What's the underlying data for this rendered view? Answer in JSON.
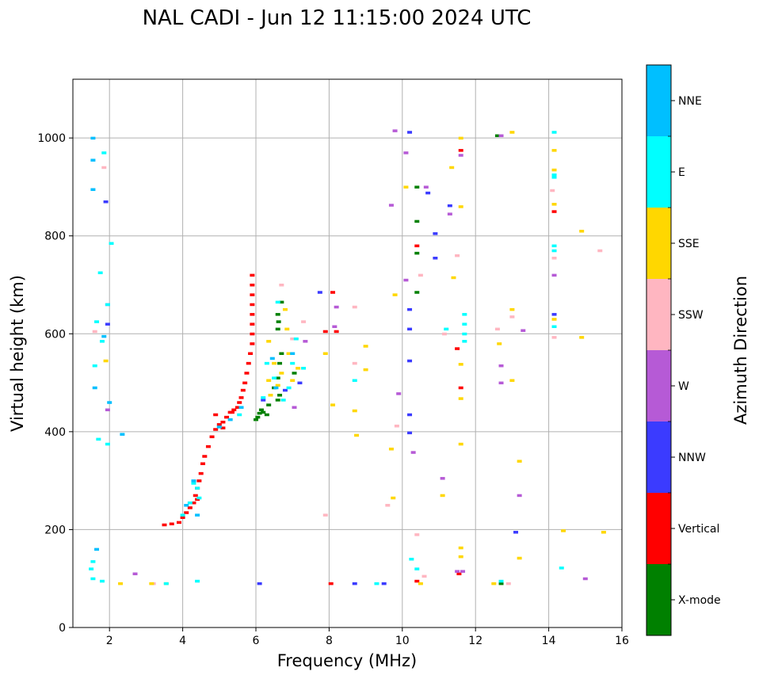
{
  "chart_data": {
    "type": "scatter",
    "title": "NAL CADI - Jun 12 11:15:00 2024 UTC",
    "xlabel": "Frequency (MHz)",
    "ylabel": "Virtual height (km)",
    "xlim": [
      1,
      16
    ],
    "ylim": [
      0,
      1120
    ],
    "xticks": [
      "2",
      "4",
      "6",
      "8",
      "10",
      "12",
      "14",
      "16"
    ],
    "xtick_values": [
      2,
      4,
      6,
      8,
      10,
      12,
      14,
      16
    ],
    "yticks": [
      "0",
      "200",
      "400",
      "600",
      "800",
      "1000"
    ],
    "ytick_values": [
      0,
      200,
      400,
      600,
      800,
      1000
    ],
    "grid": true,
    "colorbar": {
      "label": "Azimuth Direction",
      "categories": [
        "X-mode",
        "Vertical",
        "NNW",
        "W",
        "SSW",
        "SSE",
        "E",
        "NNE"
      ],
      "colors": [
        "#008000",
        "#ff0000",
        "#3b3bff",
        "#b65ad6",
        "#ffb6c1",
        "#ffd700",
        "#00ffff",
        "#00bfff"
      ]
    },
    "series": [
      {
        "name": "X-mode",
        "points": [
          [
            6.0,
            425
          ],
          [
            6.05,
            430
          ],
          [
            6.1,
            438
          ],
          [
            6.15,
            445
          ],
          [
            6.2,
            440
          ],
          [
            6.3,
            435
          ],
          [
            6.35,
            455
          ],
          [
            6.6,
            465
          ],
          [
            6.65,
            475
          ],
          [
            6.5,
            490
          ],
          [
            6.6,
            510
          ],
          [
            6.65,
            540
          ],
          [
            6.7,
            560
          ],
          [
            6.6,
            610
          ],
          [
            6.62,
            625
          ],
          [
            6.6,
            640
          ],
          [
            6.7,
            665
          ],
          [
            7.05,
            520
          ],
          [
            10.4,
            900
          ],
          [
            10.4,
            830
          ],
          [
            10.4,
            765
          ],
          [
            10.4,
            685
          ],
          [
            12.7,
            90
          ],
          [
            12.6,
            1005
          ]
        ]
      },
      {
        "name": "Vertical",
        "points": [
          [
            3.5,
            210
          ],
          [
            3.7,
            212
          ],
          [
            3.9,
            215
          ],
          [
            4.0,
            225
          ],
          [
            4.1,
            235
          ],
          [
            4.2,
            245
          ],
          [
            4.3,
            255
          ],
          [
            4.35,
            270
          ],
          [
            4.4,
            285
          ],
          [
            4.45,
            300
          ],
          [
            4.5,
            315
          ],
          [
            4.55,
            335
          ],
          [
            4.6,
            350
          ],
          [
            4.7,
            370
          ],
          [
            4.8,
            390
          ],
          [
            4.9,
            405
          ],
          [
            5.0,
            415
          ],
          [
            5.1,
            420
          ],
          [
            5.2,
            430
          ],
          [
            5.3,
            440
          ],
          [
            5.4,
            445
          ],
          [
            5.5,
            450
          ],
          [
            5.55,
            460
          ],
          [
            5.6,
            470
          ],
          [
            5.65,
            485
          ],
          [
            5.7,
            500
          ],
          [
            5.75,
            520
          ],
          [
            5.8,
            540
          ],
          [
            5.85,
            560
          ],
          [
            5.9,
            580
          ],
          [
            5.9,
            600
          ],
          [
            5.9,
            620
          ],
          [
            5.9,
            640
          ],
          [
            5.9,
            660
          ],
          [
            5.9,
            680
          ],
          [
            5.9,
            700
          ],
          [
            5.9,
            720
          ],
          [
            4.4,
            262
          ],
          [
            4.9,
            435
          ],
          [
            5.1,
            408
          ],
          [
            5.35,
            440
          ],
          [
            8.05,
            90
          ],
          [
            8.1,
            685
          ],
          [
            8.2,
            605
          ],
          [
            7.9,
            605
          ],
          [
            10.4,
            95
          ],
          [
            10.4,
            780
          ],
          [
            11.55,
            110
          ],
          [
            11.6,
            490
          ],
          [
            11.6,
            975
          ],
          [
            14.15,
            850
          ],
          [
            11.5,
            570
          ]
        ]
      },
      {
        "name": "NNW",
        "points": [
          [
            1.9,
            870
          ],
          [
            1.95,
            620
          ],
          [
            9.5,
            90
          ],
          [
            10.2,
            1012
          ],
          [
            10.2,
            650
          ],
          [
            10.2,
            610
          ],
          [
            10.2,
            545
          ],
          [
            10.2,
            435
          ],
          [
            10.2,
            398
          ],
          [
            10.7,
            888
          ],
          [
            10.9,
            805
          ],
          [
            10.9,
            755
          ],
          [
            11.3,
            862
          ],
          [
            13.1,
            195
          ],
          [
            14.15,
            640
          ],
          [
            6.1,
            90
          ],
          [
            6.2,
            465
          ],
          [
            6.8,
            485
          ],
          [
            7.2,
            500
          ],
          [
            7.75,
            685
          ],
          [
            8.7,
            90
          ]
        ]
      },
      {
        "name": "W",
        "points": [
          [
            1.95,
            660
          ],
          [
            1.95,
            445
          ],
          [
            2.7,
            110
          ],
          [
            8.2,
            655
          ],
          [
            8.15,
            615
          ],
          [
            9.8,
            1015
          ],
          [
            9.9,
            478
          ],
          [
            10.1,
            710
          ],
          [
            10.1,
            970
          ],
          [
            10.3,
            358
          ],
          [
            10.65,
            900
          ],
          [
            11.1,
            305
          ],
          [
            11.3,
            845
          ],
          [
            11.6,
            965
          ],
          [
            11.65,
            115
          ],
          [
            12.7,
            1005
          ],
          [
            12.7,
            535
          ],
          [
            12.7,
            500
          ],
          [
            13.2,
            270
          ],
          [
            13.3,
            607
          ],
          [
            14.15,
            720
          ],
          [
            15.0,
            100
          ],
          [
            9.7,
            863
          ],
          [
            11.5,
            115
          ],
          [
            7.35,
            585
          ],
          [
            7.05,
            450
          ]
        ]
      },
      {
        "name": "SSW",
        "points": [
          [
            1.6,
            605
          ],
          [
            1.85,
            940
          ],
          [
            3.2,
            90
          ],
          [
            7.3,
            625
          ],
          [
            7.9,
            230
          ],
          [
            8.7,
            655
          ],
          [
            8.7,
            540
          ],
          [
            9.6,
            250
          ],
          [
            9.85,
            412
          ],
          [
            10.4,
            190
          ],
          [
            10.5,
            720
          ],
          [
            10.6,
            105
          ],
          [
            11.15,
            600
          ],
          [
            11.5,
            760
          ],
          [
            12.6,
            610
          ],
          [
            12.9,
            90
          ],
          [
            13.0,
            635
          ],
          [
            14.1,
            893
          ],
          [
            14.15,
            755
          ],
          [
            14.15,
            593
          ],
          [
            15.4,
            770
          ],
          [
            6.7,
            700
          ],
          [
            7.0,
            590
          ]
        ]
      },
      {
        "name": "SSE",
        "points": [
          [
            1.9,
            545
          ],
          [
            2.3,
            90
          ],
          [
            3.15,
            90
          ],
          [
            3.55,
            90
          ],
          [
            7.9,
            560
          ],
          [
            8.1,
            455
          ],
          [
            8.7,
            443
          ],
          [
            8.75,
            393
          ],
          [
            9.0,
            575
          ],
          [
            9.0,
            527
          ],
          [
            9.7,
            365
          ],
          [
            9.75,
            265
          ],
          [
            9.8,
            680
          ],
          [
            10.1,
            900
          ],
          [
            10.5,
            90
          ],
          [
            11.1,
            270
          ],
          [
            11.35,
            940
          ],
          [
            11.4,
            715
          ],
          [
            11.6,
            1000
          ],
          [
            11.6,
            860
          ],
          [
            11.6,
            538
          ],
          [
            11.6,
            468
          ],
          [
            11.6,
            375
          ],
          [
            11.6,
            163
          ],
          [
            11.6,
            145
          ],
          [
            12.65,
            580
          ],
          [
            13.0,
            1012
          ],
          [
            13.0,
            650
          ],
          [
            13.0,
            505
          ],
          [
            13.2,
            340
          ],
          [
            13.2,
            142
          ],
          [
            14.15,
            975
          ],
          [
            14.15,
            935
          ],
          [
            14.15,
            865
          ],
          [
            14.15,
            630
          ],
          [
            14.4,
            198
          ],
          [
            14.9,
            593
          ],
          [
            14.9,
            810
          ],
          [
            15.5,
            195
          ],
          [
            6.35,
            585
          ],
          [
            6.5,
            540
          ],
          [
            6.7,
            520
          ],
          [
            6.9,
            560
          ],
          [
            7.0,
            505
          ],
          [
            6.4,
            475
          ],
          [
            6.35,
            505
          ],
          [
            6.6,
            495
          ],
          [
            7.15,
            530
          ],
          [
            6.8,
            650
          ],
          [
            6.85,
            610
          ],
          [
            12.5,
            90
          ]
        ]
      },
      {
        "name": "E",
        "points": [
          [
            1.5,
            120
          ],
          [
            1.55,
            100
          ],
          [
            1.55,
            135
          ],
          [
            1.6,
            535
          ],
          [
            1.65,
            625
          ],
          [
            1.7,
            385
          ],
          [
            1.75,
            725
          ],
          [
            1.8,
            585
          ],
          [
            1.8,
            95
          ],
          [
            1.85,
            970
          ],
          [
            1.95,
            660
          ],
          [
            1.95,
            375
          ],
          [
            2.05,
            785
          ],
          [
            3.55,
            90
          ],
          [
            4.4,
            95
          ],
          [
            6.6,
            665
          ],
          [
            7.1,
            590
          ],
          [
            7.3,
            530
          ],
          [
            8.7,
            505
          ],
          [
            9.3,
            90
          ],
          [
            10.25,
            140
          ],
          [
            10.4,
            120
          ],
          [
            11.2,
            610
          ],
          [
            11.7,
            620
          ],
          [
            11.7,
            600
          ],
          [
            11.7,
            585
          ],
          [
            11.7,
            640
          ],
          [
            12.7,
            95
          ],
          [
            14.15,
            1012
          ],
          [
            14.15,
            925
          ],
          [
            14.15,
            920
          ],
          [
            14.15,
            780
          ],
          [
            14.15,
            770
          ],
          [
            14.15,
            615
          ],
          [
            14.35,
            122
          ],
          [
            6.2,
            470
          ],
          [
            6.3,
            540
          ],
          [
            6.5,
            510
          ],
          [
            6.75,
            465
          ],
          [
            7.0,
            540
          ],
          [
            6.9,
            490
          ],
          [
            4.0,
            230
          ],
          [
            4.3,
            295
          ],
          [
            4.4,
            285
          ],
          [
            4.45,
            265
          ],
          [
            4.2,
            255
          ],
          [
            5.55,
            435
          ]
        ]
      },
      {
        "name": "NNE",
        "points": [
          [
            1.55,
            1000
          ],
          [
            1.55,
            955
          ],
          [
            1.55,
            895
          ],
          [
            1.6,
            490
          ],
          [
            1.65,
            160
          ],
          [
            1.85,
            595
          ],
          [
            2.0,
            460
          ],
          [
            2.35,
            395
          ],
          [
            4.1,
            250
          ],
          [
            4.3,
            300
          ],
          [
            4.4,
            230
          ],
          [
            5.0,
            410
          ],
          [
            5.3,
            425
          ],
          [
            5.6,
            450
          ],
          [
            6.55,
            490
          ],
          [
            6.45,
            550
          ],
          [
            7.0,
            560
          ]
        ]
      }
    ]
  }
}
